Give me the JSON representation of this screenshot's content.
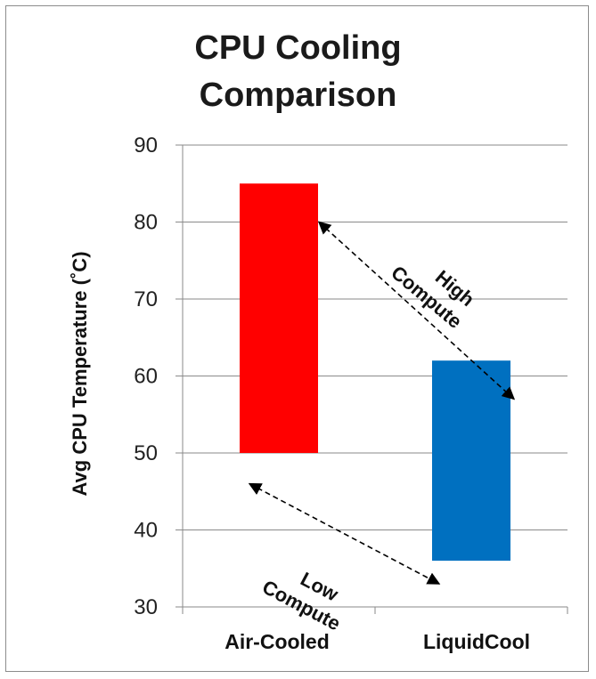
{
  "chart_data": {
    "type": "bar",
    "title_line1": "CPU Cooling",
    "title_line2": "Comparison",
    "ylabel": "Avg CPU Temperature (˚C)",
    "xlabel": "",
    "ylim": [
      30,
      90
    ],
    "yticks": [
      "30",
      "40",
      "50",
      "60",
      "70",
      "80",
      "90"
    ],
    "grid": true,
    "legend": "none",
    "categories": [
      "Air-Cooled",
      "LiquidCool"
    ],
    "ranges": [
      {
        "category": "Air-Cooled",
        "low": 50,
        "high": 85,
        "color": "#ff0000"
      },
      {
        "category": "LiquidCool",
        "low": 36,
        "high": 62,
        "color": "#0070c0"
      }
    ],
    "annotations": [
      {
        "line1": "High",
        "line2": "Compute",
        "from_y": 80,
        "to_y": 57
      },
      {
        "line1": "Low",
        "line2": "Compute",
        "from_y": 46,
        "to_y": 33
      }
    ]
  }
}
